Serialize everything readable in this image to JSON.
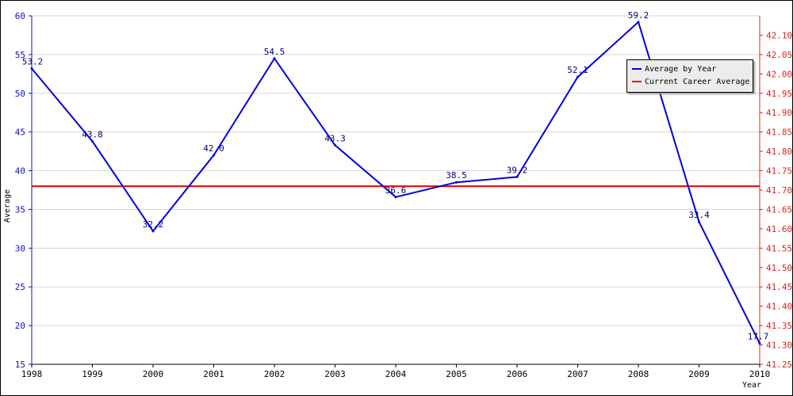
{
  "chart_data": {
    "type": "line",
    "xlabel": "Year",
    "ylabel": "Average",
    "x": [
      "1998",
      "1999",
      "2000",
      "2001",
      "2002",
      "2003",
      "2004",
      "2005",
      "2006",
      "2007",
      "2008",
      "2009",
      "2010"
    ],
    "series": [
      {
        "name": "Average by Year",
        "color": "#0000dd",
        "axis": "left",
        "values": [
          53.2,
          43.8,
          32.2,
          42.0,
          54.5,
          43.3,
          36.6,
          38.5,
          39.2,
          52.1,
          59.2,
          33.4,
          17.7
        ],
        "labels": [
          "53.2",
          "43.8",
          "32.2",
          "42.0",
          "54.5",
          "43.3",
          "36.6",
          "38.5",
          "39.2",
          "52.1",
          "59.2",
          "33.4",
          "17.7"
        ]
      },
      {
        "name": "Current Career Average",
        "color": "#ee0000",
        "axis": "right",
        "value": 41.71
      }
    ],
    "ylim_left": [
      15,
      60
    ],
    "yticks_left": [
      "15",
      "20",
      "25",
      "30",
      "35",
      "40",
      "45",
      "50",
      "55",
      "60"
    ],
    "ylim_right": [
      41.25,
      42.15
    ],
    "yticks_right": [
      "41.25",
      "41.30",
      "41.35",
      "41.40",
      "41.45",
      "41.50",
      "41.55",
      "41.60",
      "41.65",
      "41.70",
      "41.75",
      "41.80",
      "41.85",
      "41.90",
      "41.95",
      "42.00",
      "42.05",
      "42.10"
    ],
    "grid": true,
    "legend_position": "top-right"
  }
}
